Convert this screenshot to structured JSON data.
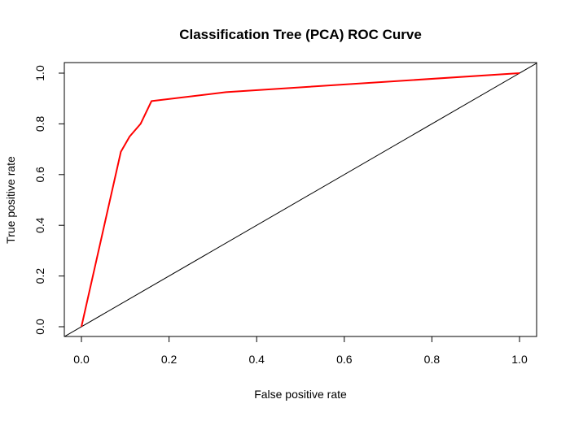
{
  "chart_data": {
    "type": "line",
    "title": "Classification Tree (PCA) ROC Curve",
    "xlabel": "False positive rate",
    "ylabel": "True positive rate",
    "xlim": [
      0,
      1
    ],
    "ylim": [
      0,
      1
    ],
    "x_ticks": [
      "0.0",
      "0.2",
      "0.4",
      "0.6",
      "0.8",
      "1.0"
    ],
    "y_ticks": [
      "0.0",
      "0.2",
      "0.4",
      "0.6",
      "0.8",
      "1.0"
    ],
    "grid": false,
    "legend": false,
    "series": [
      {
        "x": [
          0.0,
          0.09,
          0.11,
          0.135,
          0.16,
          0.33,
          1.0
        ],
        "y": [
          0.0,
          0.69,
          0.75,
          0.8,
          0.89,
          0.925,
          1.0
        ],
        "color": "#ff0000"
      }
    ],
    "reference_line": {
      "x": [
        0,
        1
      ],
      "y": [
        0,
        1
      ],
      "color": "#000000",
      "extends_to_plot_edges": true
    }
  }
}
